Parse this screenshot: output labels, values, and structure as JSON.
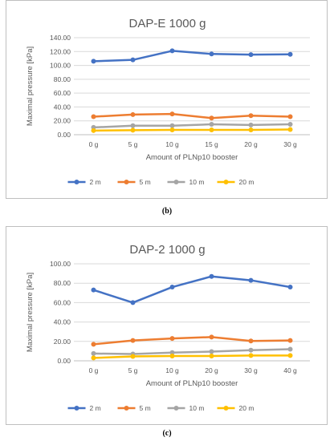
{
  "chart_data": [
    {
      "type": "line",
      "title": "DAP-E 1000 g",
      "xlabel": "Amount of PLNp10 booster",
      "ylabel": "Maximal pressure [kPa]",
      "categories": [
        "0 g",
        "5 g",
        "10 g",
        "15 g",
        "20 g",
        "30 g"
      ],
      "ylim": [
        0,
        140
      ],
      "yticks": [
        "0.00",
        "20.00",
        "40.00",
        "60.00",
        "80.00",
        "100.00",
        "120.00",
        "140.00"
      ],
      "grid": true,
      "legend": "bottom",
      "series": [
        {
          "name": "2 m",
          "color": "#4472c4",
          "values": [
            106,
            108,
            121,
            116.5,
            115.5,
            116
          ]
        },
        {
          "name": "5 m",
          "color": "#ed7d31",
          "values": [
            26,
            29,
            30,
            24,
            27.5,
            26
          ]
        },
        {
          "name": "10 m",
          "color": "#a5a5a5",
          "values": [
            10.5,
            13,
            13,
            15,
            14,
            15
          ]
        },
        {
          "name": "20 m",
          "color": "#ffc000",
          "values": [
            6,
            6.5,
            7,
            7,
            7,
            7.5
          ]
        }
      ]
    },
    {
      "type": "line",
      "title": "DAP-2 1000 g",
      "xlabel": "Amount of PLNp10 booster",
      "ylabel": "Maximal pressure [kPa]",
      "categories": [
        "0 g",
        "5 g",
        "10 g",
        "20 g",
        "30 g",
        "40 g"
      ],
      "ylim": [
        0,
        100
      ],
      "yticks": [
        "0.00",
        "20.00",
        "40.00",
        "60.00",
        "80.00",
        "100.00"
      ],
      "grid": true,
      "legend": "bottom",
      "series": [
        {
          "name": "2 m",
          "color": "#4472c4",
          "values": [
            73,
            60,
            76,
            87,
            83,
            76
          ]
        },
        {
          "name": "5 m",
          "color": "#ed7d31",
          "values": [
            17,
            21,
            23,
            24.5,
            20.5,
            21
          ]
        },
        {
          "name": "10 m",
          "color": "#a5a5a5",
          "values": [
            7.5,
            7,
            8.5,
            9.5,
            11,
            12
          ]
        },
        {
          "name": "20 m",
          "color": "#ffc000",
          "values": [
            3,
            4.5,
            5,
            5,
            5.5,
            5.5
          ]
        }
      ]
    }
  ],
  "captions": [
    "(b)",
    "(c)"
  ]
}
